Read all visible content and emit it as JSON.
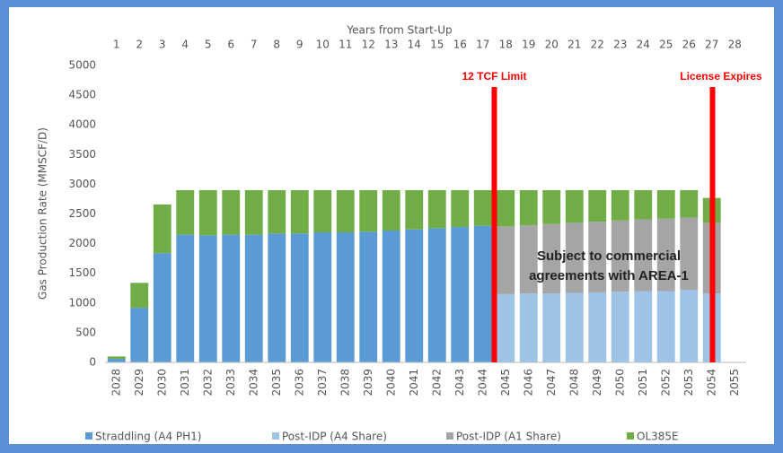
{
  "chart_data": {
    "type": "bar",
    "stacked": true,
    "top_axis_label": "Years from Start-Up",
    "top_categories": [
      "1",
      "2",
      "3",
      "4",
      "5",
      "6",
      "7",
      "8",
      "9",
      "10",
      "11",
      "12",
      "13",
      "14",
      "15",
      "16",
      "17",
      "18",
      "19",
      "20",
      "21",
      "22",
      "23",
      "24",
      "25",
      "26",
      "27",
      "28"
    ],
    "y_label": "Gas Production Rate (MMSCF/D)",
    "categories": [
      "2028",
      "2029",
      "2030",
      "2031",
      "2032",
      "2033",
      "2034",
      "2035",
      "2036",
      "2037",
      "2038",
      "2039",
      "2040",
      "2041",
      "2042",
      "2043",
      "2044",
      "2045",
      "2046",
      "2047",
      "2048",
      "2049",
      "2050",
      "2051",
      "2052",
      "2053",
      "2054",
      "2055"
    ],
    "series": [
      {
        "name": "Straddling (A4 PH1)",
        "color": "#5b9bd5",
        "values": [
          60,
          920,
          1840,
          2150,
          2140,
          2150,
          2150,
          2170,
          2170,
          2190,
          2190,
          2200,
          2220,
          2240,
          2260,
          2280,
          2300,
          null,
          null,
          null,
          null,
          null,
          null,
          null,
          null,
          null,
          null,
          null
        ]
      },
      {
        "name": "Post-IDP (A4 Share)",
        "color": "#9dc3e6",
        "values": [
          null,
          null,
          null,
          null,
          null,
          null,
          null,
          null,
          null,
          null,
          null,
          null,
          null,
          null,
          null,
          null,
          null,
          1150,
          1160,
          1160,
          1170,
          1180,
          1190,
          1200,
          1200,
          1220,
          1160,
          null
        ]
      },
      {
        "name": "Post-IDP (A1 Share)",
        "color": "#a5a5a5",
        "values": [
          null,
          null,
          null,
          null,
          null,
          null,
          null,
          null,
          null,
          null,
          null,
          null,
          null,
          null,
          null,
          null,
          null,
          1140,
          1150,
          1170,
          1180,
          1190,
          1200,
          1210,
          1220,
          1220,
          1190,
          null
        ]
      },
      {
        "name": "OL385E",
        "color": "#70ad47",
        "values": [
          40,
          420,
          820,
          750,
          760,
          750,
          750,
          730,
          730,
          710,
          710,
          700,
          680,
          660,
          640,
          620,
          600,
          610,
          590,
          570,
          550,
          530,
          510,
          490,
          480,
          460,
          420,
          null
        ]
      }
    ],
    "ylim": [
      0,
      5000
    ],
    "yticks": [
      0,
      500,
      1000,
      1500,
      2000,
      2500,
      3000,
      3500,
      4000,
      4500,
      5000
    ],
    "grid": false,
    "legend": "bottom",
    "markers": [
      {
        "label": "12 TCF Limit",
        "color": "#ff0000"
      },
      {
        "label": "License Expires",
        "color": "#ff0000"
      }
    ],
    "annotation": [
      "Subject to commercial",
      "agreements with AREA-1"
    ]
  }
}
